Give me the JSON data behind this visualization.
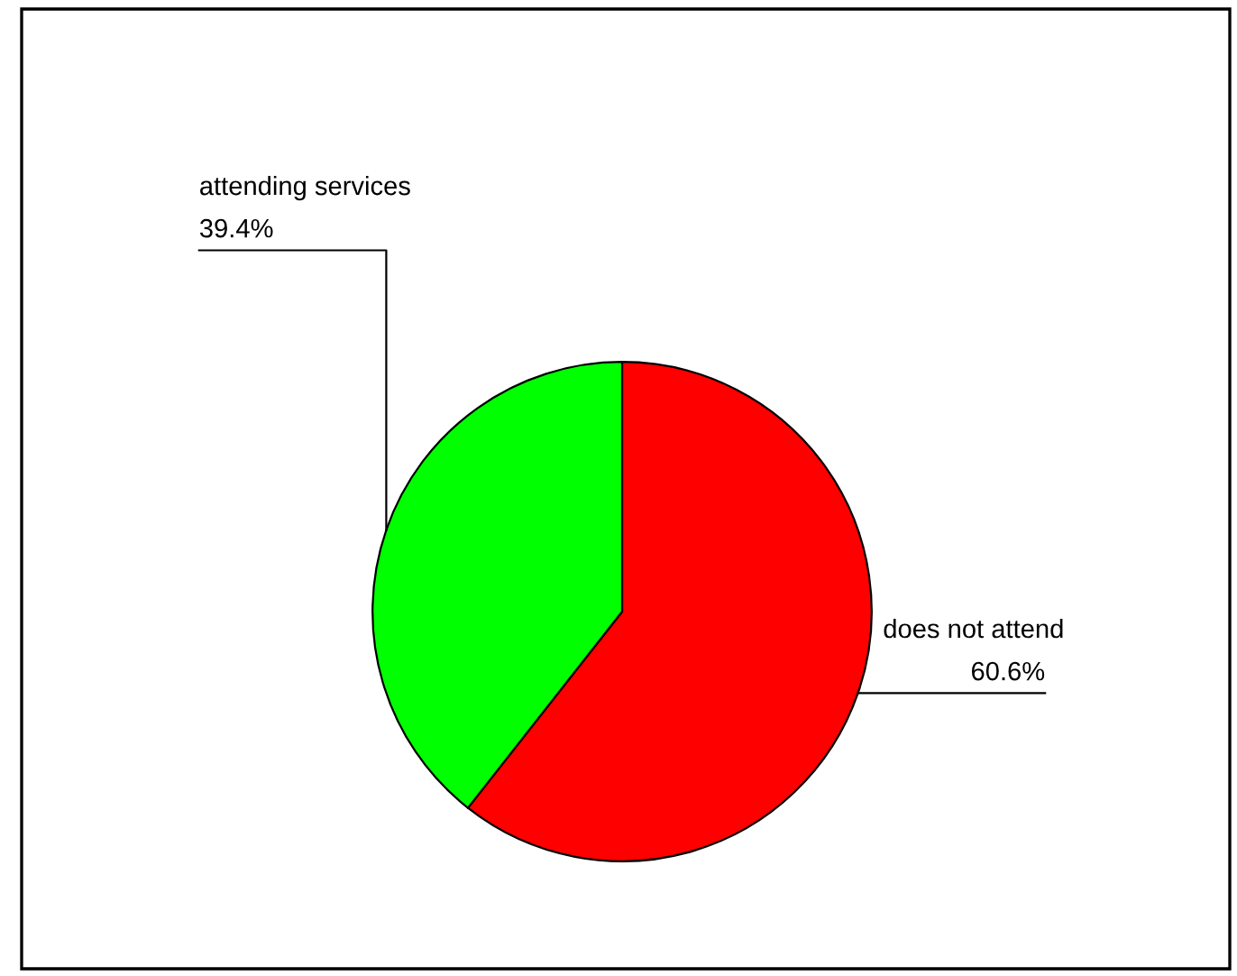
{
  "chart_data": {
    "type": "pie",
    "categories": [
      "does not attend",
      "attending services"
    ],
    "values": [
      60.6,
      39.4
    ],
    "colors": [
      "#ff0000",
      "#00ff00"
    ],
    "value_labels": [
      "60.6%",
      "39.4%"
    ],
    "legend": false
  }
}
